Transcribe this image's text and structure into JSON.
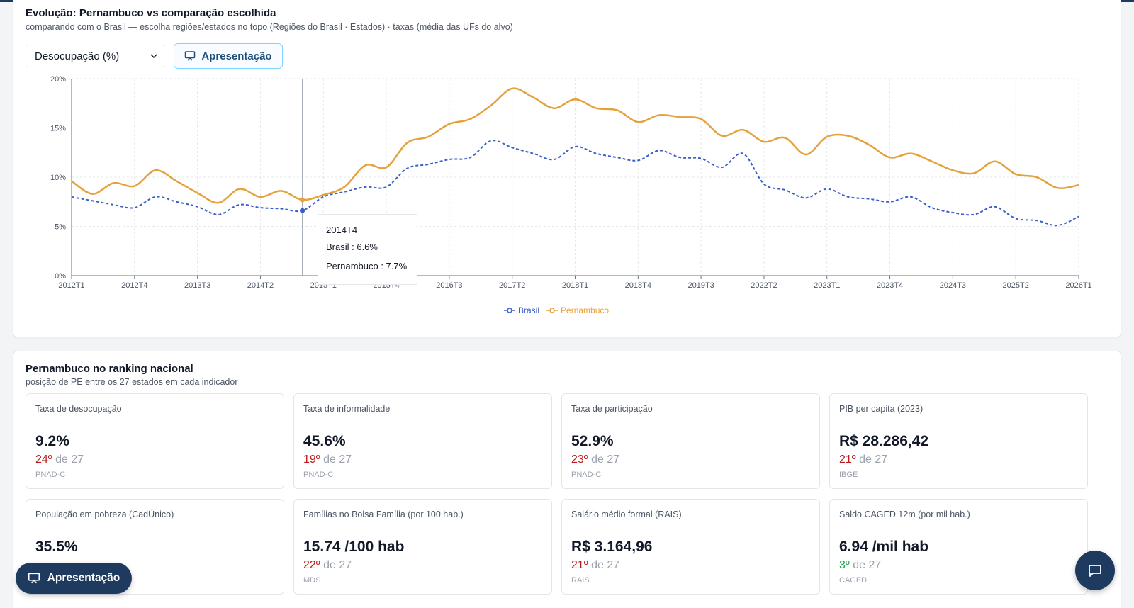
{
  "colors": {
    "brand": "#1e3a5f",
    "brasil": "#3b5fc7",
    "pernambuco": "#e5a23c",
    "rank_bad": "#b91c1c",
    "rank_good": "#16a34a"
  },
  "chart_card": {
    "title": "Evolução: Pernambuco vs comparação escolhida",
    "subtitle": "comparando com o Brasil — escolha regiões/estados no topo (Regiões do Brasil · Estados) · taxas (média das UFs do alvo)",
    "select_value": "Desocupação (%)",
    "present_label": "Apresentação"
  },
  "tooltip": {
    "title": "2014T4",
    "brasil": "Brasil : 6.6%",
    "pernambuco": "Pernambuco : 7.7%"
  },
  "chart_data": {
    "type": "line",
    "x": [
      "2012T1",
      "2012T2",
      "2012T3",
      "2012T4",
      "2013T1",
      "2013T2",
      "2013T3",
      "2013T4",
      "2014T1",
      "2014T2",
      "2014T3",
      "2014T4",
      "2015T1",
      "2015T2",
      "2015T3",
      "2015T4",
      "2016T1",
      "2016T2",
      "2016T3",
      "2016T4",
      "2017T1",
      "2017T2",
      "2017T3",
      "2017T4",
      "2018T1",
      "2018T2",
      "2018T3",
      "2018T4",
      "2019T1",
      "2019T2",
      "2019T3",
      "2019T4",
      "2020T1",
      "2022T2",
      "2022T3",
      "2022T4",
      "2023T1",
      "2023T2",
      "2023T3",
      "2023T4",
      "2024T1",
      "2024T2",
      "2024T3",
      "2024T4",
      "2025T1",
      "2025T2",
      "2025T3",
      "2025T4",
      "2026T1"
    ],
    "x_tick_labels": [
      "2012T1",
      "2012T4",
      "2013T3",
      "2014T2",
      "2015T1",
      "2015T4",
      "2016T3",
      "2017T2",
      "2018T1",
      "2018T4",
      "2019T3",
      "2022T2",
      "2023T1",
      "2023T4",
      "2024T3",
      "2025T2",
      "2026T1"
    ],
    "y_tick_labels": [
      "0%",
      "5%",
      "10%",
      "15%",
      "20%"
    ],
    "ylim": [
      0,
      20
    ],
    "grid": true,
    "legend_position": "bottom-center",
    "series": [
      {
        "name": "Brasil",
        "style": "dashed",
        "values": [
          8.0,
          7.6,
          7.2,
          6.9,
          8.0,
          7.5,
          7.0,
          6.2,
          7.2,
          6.9,
          6.8,
          6.6,
          8.0,
          8.5,
          9.0,
          9.0,
          10.9,
          11.3,
          11.8,
          12.0,
          13.7,
          13.0,
          12.4,
          11.8,
          13.1,
          12.4,
          12.0,
          11.7,
          12.7,
          12.0,
          11.9,
          11.0,
          12.4,
          9.3,
          8.7,
          7.9,
          8.8,
          8.0,
          7.8,
          7.5,
          8.0,
          6.9,
          6.4,
          6.2,
          7.0,
          5.8,
          5.6,
          5.1,
          6.0
        ]
      },
      {
        "name": "Pernambuco",
        "style": "solid",
        "values": [
          9.6,
          8.3,
          9.4,
          9.1,
          10.7,
          9.6,
          8.4,
          7.4,
          8.8,
          8.0,
          8.6,
          7.7,
          8.2,
          9.0,
          11.2,
          11.0,
          13.5,
          14.1,
          15.4,
          15.9,
          17.3,
          19.0,
          18.1,
          17.0,
          17.9,
          17.0,
          16.8,
          15.6,
          16.3,
          16.1,
          15.9,
          14.2,
          14.8,
          13.6,
          14.0,
          12.3,
          14.1,
          14.2,
          13.3,
          12.0,
          12.4,
          11.6,
          10.7,
          10.4,
          11.6,
          10.3,
          10.0,
          8.9,
          9.2
        ]
      }
    ]
  },
  "ranking": {
    "title": "Pernambuco no ranking nacional",
    "subtitle": "posição de PE entre os 27 estados em cada indicador",
    "cards": [
      {
        "label": "Taxa de desocupação",
        "value": "9.2%",
        "pos": "24º",
        "of": "de 27",
        "source": "PNAD-C",
        "good": false
      },
      {
        "label": "Taxa de informalidade",
        "value": "45.6%",
        "pos": "19º",
        "of": "de 27",
        "source": "PNAD-C",
        "good": false
      },
      {
        "label": "Taxa de participação",
        "value": "52.9%",
        "pos": "23º",
        "of": "de 27",
        "source": "PNAD-C",
        "good": false
      },
      {
        "label": "PIB per capita (2023)",
        "value": "R$ 28.286,42",
        "pos": "21º",
        "of": "de 27",
        "source": "IBGE",
        "good": false
      },
      {
        "label": "População em pobreza (CadÚnico)",
        "value": "35.5%",
        "pos": "",
        "of": "",
        "source": "",
        "good": false
      },
      {
        "label": "Famílias no Bolsa Família (por 100 hab.)",
        "value": "15.74 /100 hab",
        "pos": "22º",
        "of": "de 27",
        "source": "MDS",
        "good": false
      },
      {
        "label": "Salário médio formal (RAIS)",
        "value": "R$ 3.164,96",
        "pos": "21º",
        "of": "de 27",
        "source": "RAIS",
        "good": false
      },
      {
        "label": "Saldo CAGED 12m (por mil hab.)",
        "value": "6.94 /mil hab",
        "pos": "3º",
        "of": "de 27",
        "source": "CAGED",
        "good": true
      }
    ]
  },
  "floating": {
    "present_label": "Apresentação"
  },
  "icons": {
    "presentation": "presentation-icon",
    "chat": "chat-icon",
    "select_chevron": "chevron-down-icon"
  }
}
